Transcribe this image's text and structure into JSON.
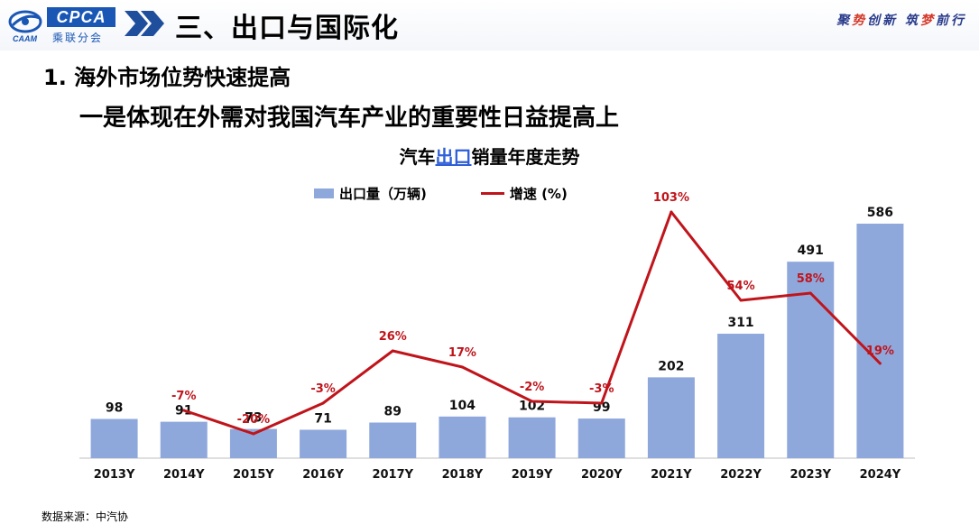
{
  "header": {
    "logo_text": "CPCA",
    "logo_sub": "乘联分会",
    "logo_small": "CAAM",
    "section_title": "三、出口与国际化",
    "slogan_parts": [
      "聚",
      "势",
      "创新 筑",
      "梦",
      "前行"
    ]
  },
  "sub_heading": "1. 海外市场位势快速提高",
  "main_heading": "一是体现在外需对我国汽车产业的重要性日益提高上",
  "chart_title_parts": [
    "汽车",
    "出口",
    "销量年度走势"
  ],
  "source": "数据来源：中汽协",
  "colors": {
    "bar": "#8fa8dc",
    "line": "#c0141b",
    "label_line": "#c0141b"
  },
  "chart_data": {
    "type": "bar",
    "title": "汽车出口销量年度走势",
    "categories": [
      "2013Y",
      "2014Y",
      "2015Y",
      "2016Y",
      "2017Y",
      "2018Y",
      "2019Y",
      "2020Y",
      "2021Y",
      "2022Y",
      "2023Y",
      "2024Y"
    ],
    "series": [
      {
        "name": "出口量（万辆)",
        "type": "bar",
        "axis": "left",
        "values": [
          98,
          91,
          73,
          71,
          89,
          104,
          102,
          99,
          202,
          311,
          491,
          586
        ],
        "labels": [
          "98",
          "91",
          "73",
          "71",
          "89",
          "104",
          "102",
          "99",
          "202",
          "311",
          "491",
          "586"
        ]
      },
      {
        "name": "增速 (%)",
        "type": "line",
        "axis": "right",
        "values": [
          null,
          -7,
          -20,
          -3,
          26,
          17,
          -2,
          -3,
          103,
          54,
          58,
          19
        ],
        "labels": [
          "",
          "-7%",
          "-20%",
          "-3%",
          "26%",
          "17%",
          "-2%",
          "-3%",
          "103%",
          "54%",
          "58%",
          "19%"
        ]
      }
    ],
    "legend": "top",
    "grid": false
  }
}
